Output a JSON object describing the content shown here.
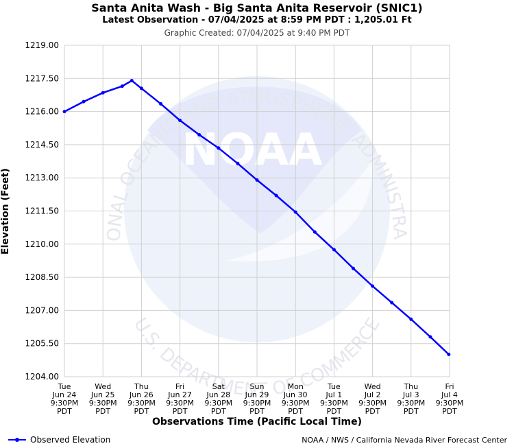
{
  "header": {
    "title": "Santa Anita Wash - Big Santa Anita Reservoir (SNIC1)",
    "subtitle": "Latest Observation - 07/04/2025 at 8:59 PM PDT : 1,205.01 Ft",
    "created": "Graphic Created: 07/04/2025 at 9:40 PM PDT"
  },
  "watermark": {
    "logo_text": "NOAA",
    "ring_top": "NATIONAL OCEANIC AND ATMOSPHERIC ADMINISTRATION",
    "ring_bottom": "U.S. DEPARTMENT OF COMMERCE"
  },
  "legend": {
    "label": "Observed Elevation"
  },
  "credit": "NOAA / NWS / California Nevada River Forecast Center",
  "colors": {
    "series": "#0000ff",
    "grid": "#d0d0d0",
    "watermark": "#e9ecfb"
  },
  "chart_data": {
    "type": "line",
    "xlabel": "Observations Time (Pacific Local Time)",
    "ylabel": "Elevation (Feet)",
    "ylim": [
      1204.0,
      1219.0
    ],
    "yticks": [
      "1219.00",
      "1217.50",
      "1216.00",
      "1214.50",
      "1213.00",
      "1211.50",
      "1210.00",
      "1208.50",
      "1207.00",
      "1205.50",
      "1204.00"
    ],
    "xlim": [
      "2025-06-24T21:30",
      "2025-07-04T21:30"
    ],
    "xticks": [
      [
        "Tue",
        "Jun 24",
        "9:30PM",
        "PDT"
      ],
      [
        "Wed",
        "Jun 25",
        "9:30PM",
        "PDT"
      ],
      [
        "Thu",
        "Jun 26",
        "9:30PM",
        "PDT"
      ],
      [
        "Fri",
        "Jun 27",
        "9:30PM",
        "PDT"
      ],
      [
        "Sat",
        "Jun 28",
        "9:30PM",
        "PDT"
      ],
      [
        "Sun",
        "Jun 29",
        "9:30PM",
        "PDT"
      ],
      [
        "Mon",
        "Jun 30",
        "9:30PM",
        "PDT"
      ],
      [
        "Tue",
        "Jul 1",
        "9:30PM",
        "PDT"
      ],
      [
        "Wed",
        "Jul 2",
        "9:30PM",
        "PDT"
      ],
      [
        "Thu",
        "Jul 3",
        "9:30PM",
        "PDT"
      ],
      [
        "Fri",
        "Jul 4",
        "9:30PM",
        "PDT"
      ]
    ],
    "grid": true,
    "legend_position": "bottom-left",
    "series": [
      {
        "name": "Observed Elevation",
        "points": [
          [
            "2025-06-24T21:30",
            1216.0
          ],
          [
            "2025-06-25T09:30",
            1216.45
          ],
          [
            "2025-06-25T21:30",
            1216.85
          ],
          [
            "2025-06-26T09:30",
            1217.15
          ],
          [
            "2025-06-26T15:30",
            1217.4
          ],
          [
            "2025-06-26T21:30",
            1217.05
          ],
          [
            "2025-06-27T09:30",
            1216.35
          ],
          [
            "2025-06-27T21:30",
            1215.6
          ],
          [
            "2025-06-28T09:30",
            1214.95
          ],
          [
            "2025-06-28T21:30",
            1214.35
          ],
          [
            "2025-06-29T09:30",
            1213.65
          ],
          [
            "2025-06-29T21:30",
            1212.9
          ],
          [
            "2025-06-30T09:30",
            1212.2
          ],
          [
            "2025-06-30T21:30",
            1211.45
          ],
          [
            "2025-07-01T09:30",
            1210.55
          ],
          [
            "2025-07-01T21:30",
            1209.75
          ],
          [
            "2025-07-02T09:30",
            1208.9
          ],
          [
            "2025-07-02T21:30",
            1208.1
          ],
          [
            "2025-07-03T09:30",
            1207.35
          ],
          [
            "2025-07-03T21:30",
            1206.6
          ],
          [
            "2025-07-04T09:30",
            1205.8
          ],
          [
            "2025-07-04T20:59",
            1205.01
          ]
        ]
      }
    ]
  }
}
